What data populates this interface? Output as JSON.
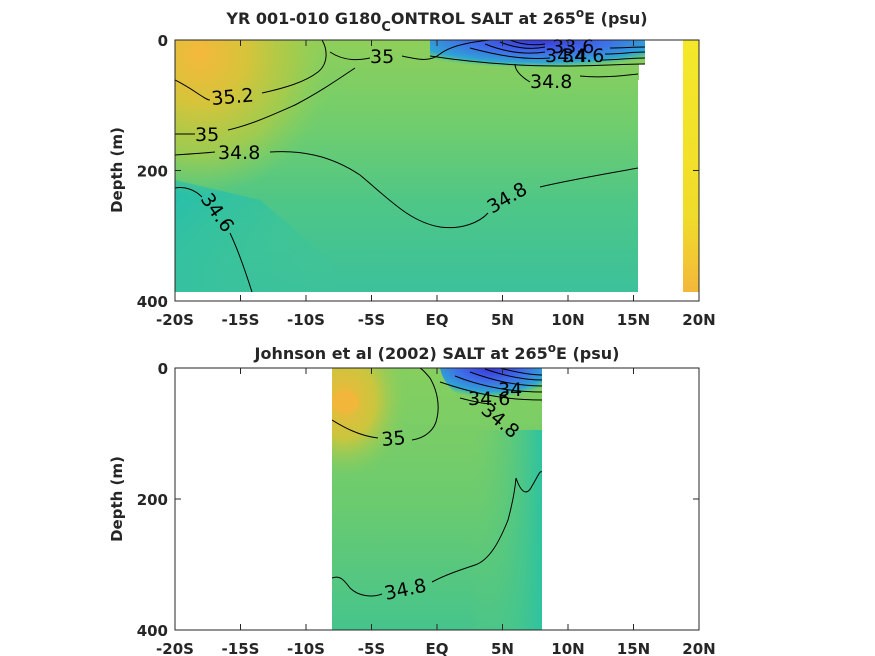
{
  "chart_data": [
    {
      "type": "contour",
      "title": {
        "main": "YR 001-010 G180",
        "sub": "C",
        "main2": "ONTROL SALT at 265",
        "sup": "o",
        "end": "E (psu)"
      },
      "ylabel": "Depth (m)",
      "xlim": [
        -20,
        20
      ],
      "ylim": [
        400,
        0
      ],
      "xticks": [
        -20,
        -15,
        -10,
        -5,
        0,
        5,
        10,
        15,
        20
      ],
      "xticklabels": [
        "-20S",
        "-15S",
        "-10S",
        "-5S",
        "EQ",
        "5N",
        "10N",
        "15N",
        "20N"
      ],
      "yticks": [
        0,
        200,
        400
      ],
      "yticklabels": [
        "0",
        "200",
        "400"
      ],
      "contour_labels": [
        "35",
        "35.2",
        "35",
        "34.8",
        "34.6",
        "34.8",
        "34.8",
        "33.6",
        "34.4",
        "34.6"
      ],
      "contours": [
        {
          "level": 35.2,
          "x": [
            -20,
            -18,
            -15,
            -12,
            -10,
            -8
          ],
          "y": [
            75,
            90,
            100,
            95,
            70,
            35
          ]
        },
        {
          "level": 35,
          "x": [
            -20,
            -17,
            -14,
            -11,
            -8,
            -5,
            -2,
            1,
            3
          ],
          "y": [
            140,
            140,
            130,
            110,
            90,
            70,
            35,
            20,
            0
          ]
        },
        {
          "level": 34.8,
          "x": [
            -20,
            -16,
            -12,
            -8,
            -4,
            -2,
            0,
            3,
            6,
            9,
            12,
            15
          ],
          "y": [
            175,
            175,
            170,
            175,
            200,
            225,
            235,
            225,
            200,
            180,
            180,
            180
          ]
        },
        {
          "level": 34.6,
          "x": [
            -20,
            -18,
            -16,
            -15,
            -14
          ],
          "y": [
            225,
            240,
            280,
            340,
            400
          ]
        },
        {
          "level": 34.8,
          "x": [
            4,
            6,
            8,
            10,
            12,
            14
          ],
          "y": [
            30,
            35,
            40,
            45,
            45,
            42
          ]
        }
      ]
    },
    {
      "type": "contour",
      "title": {
        "main": "Johnson et al (2002) SALT at 265",
        "sup": "o",
        "end": "E (psu)"
      },
      "ylabel": "Depth (m)",
      "xlim": [
        -20,
        20
      ],
      "ylim": [
        400,
        0
      ],
      "data_xrange": [
        -8,
        8
      ],
      "xticks": [
        -20,
        -15,
        -10,
        -5,
        0,
        5,
        10,
        15,
        20
      ],
      "xticklabels": [
        "-20S",
        "-15S",
        "-10S",
        "-5S",
        "EQ",
        "5N",
        "10N",
        "15N",
        "20N"
      ],
      "yticks": [
        0,
        200,
        400
      ],
      "yticklabels": [
        "0",
        "200",
        "400"
      ],
      "contour_labels": [
        "35",
        "34",
        "34.6",
        "34.8",
        "34.8"
      ],
      "contours": [
        {
          "level": 35,
          "x": [
            -8,
            -5,
            -2,
            -1,
            -1.5,
            -2
          ],
          "y": [
            90,
            110,
            105,
            80,
            40,
            5
          ]
        },
        {
          "level": 34.8,
          "x": [
            -8,
            -6,
            -4,
            -2,
            0,
            2,
            4,
            5,
            6,
            7,
            8
          ],
          "y": [
            320,
            330,
            340,
            335,
            320,
            300,
            280,
            250,
            180,
            160,
            160
          ]
        }
      ]
    }
  ]
}
